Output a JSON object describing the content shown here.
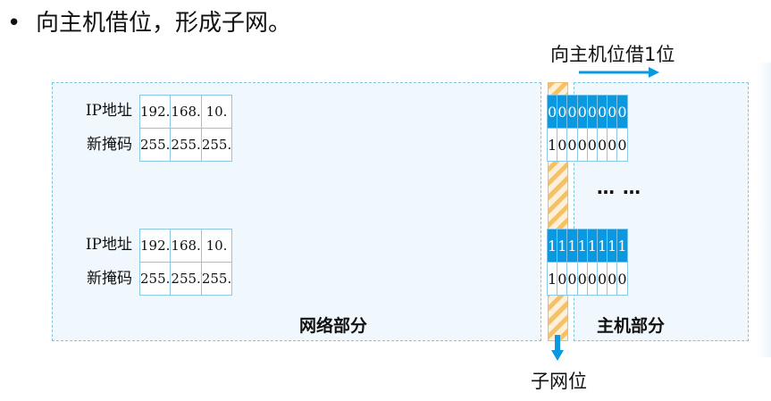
{
  "heading": {
    "bullet": "•",
    "text": "向主机借位，形成子网。"
  },
  "labels": {
    "borrow": "向主机位借1位",
    "network_part": "网络部分",
    "host_part": "主机部分",
    "subnet_bit": "子网位",
    "ellipsis": "… …"
  },
  "blocks": [
    {
      "ip_label": "IP地址",
      "mask_label": "新掩码",
      "ip_octets": [
        "192.",
        "168.",
        "10."
      ],
      "ip_bits": [
        "0",
        "0",
        "0",
        "0",
        "0",
        "0",
        "0",
        "0"
      ],
      "mask_octets": [
        "255.",
        "255.",
        "255."
      ],
      "mask_bits": [
        "1",
        "0",
        "0",
        "0",
        "0",
        "0",
        "0",
        "0"
      ]
    },
    {
      "ip_label": "IP地址",
      "mask_label": "新掩码",
      "ip_octets": [
        "192.",
        "168.",
        "10."
      ],
      "ip_bits": [
        "1",
        "1",
        "1",
        "1",
        "1",
        "1",
        "1",
        "1"
      ],
      "mask_octets": [
        "255.",
        "255.",
        "255."
      ],
      "mask_bits": [
        "1",
        "0",
        "0",
        "0",
        "0",
        "0",
        "0",
        "0"
      ]
    }
  ],
  "colors": {
    "bit_highlight": "#0a98e0",
    "region_border": "#7fc3e6",
    "arrow": "#0a98e0",
    "subnet_stripe": "#f6c065"
  }
}
